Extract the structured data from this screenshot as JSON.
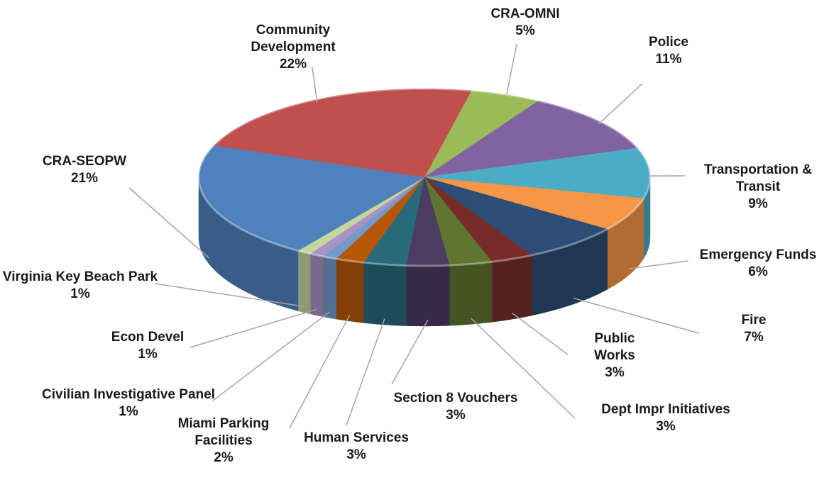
{
  "chart_data": {
    "type": "pie",
    "categories": [
      "CRA-OMNI",
      "Police",
      "Transportation & Transit",
      "Emergency Funds",
      "Fire",
      "Public Works",
      "Dept Impr Initiatives",
      "Section 8 Vouchers",
      "Human Services",
      "Miami Parking Facilities",
      "Civilian Investigative Panel",
      "Econ Devel",
      "Virginia Key Beach Park",
      "CRA-SEOPW",
      "Community Development"
    ],
    "values": [
      5,
      11,
      9,
      6,
      7,
      3,
      3,
      3,
      3,
      2,
      1,
      1,
      1,
      21,
      22
    ],
    "value_labels": [
      "5%",
      "11%",
      "9%",
      "6%",
      "7%",
      "3%",
      "3%",
      "3%",
      "3%",
      "2%",
      "1%",
      "1%",
      "1%",
      "21%",
      "22%"
    ],
    "colors": [
      "#9bbb59",
      "#8064a2",
      "#4bacc6",
      "#f79646",
      "#2c4d75",
      "#772c2a",
      "#5f7530",
      "#4d3b62",
      "#276a7c",
      "#b65708",
      "#729aca",
      "#a992c4",
      "#c3d69b",
      "#4f81bd",
      "#c0504d"
    ]
  }
}
